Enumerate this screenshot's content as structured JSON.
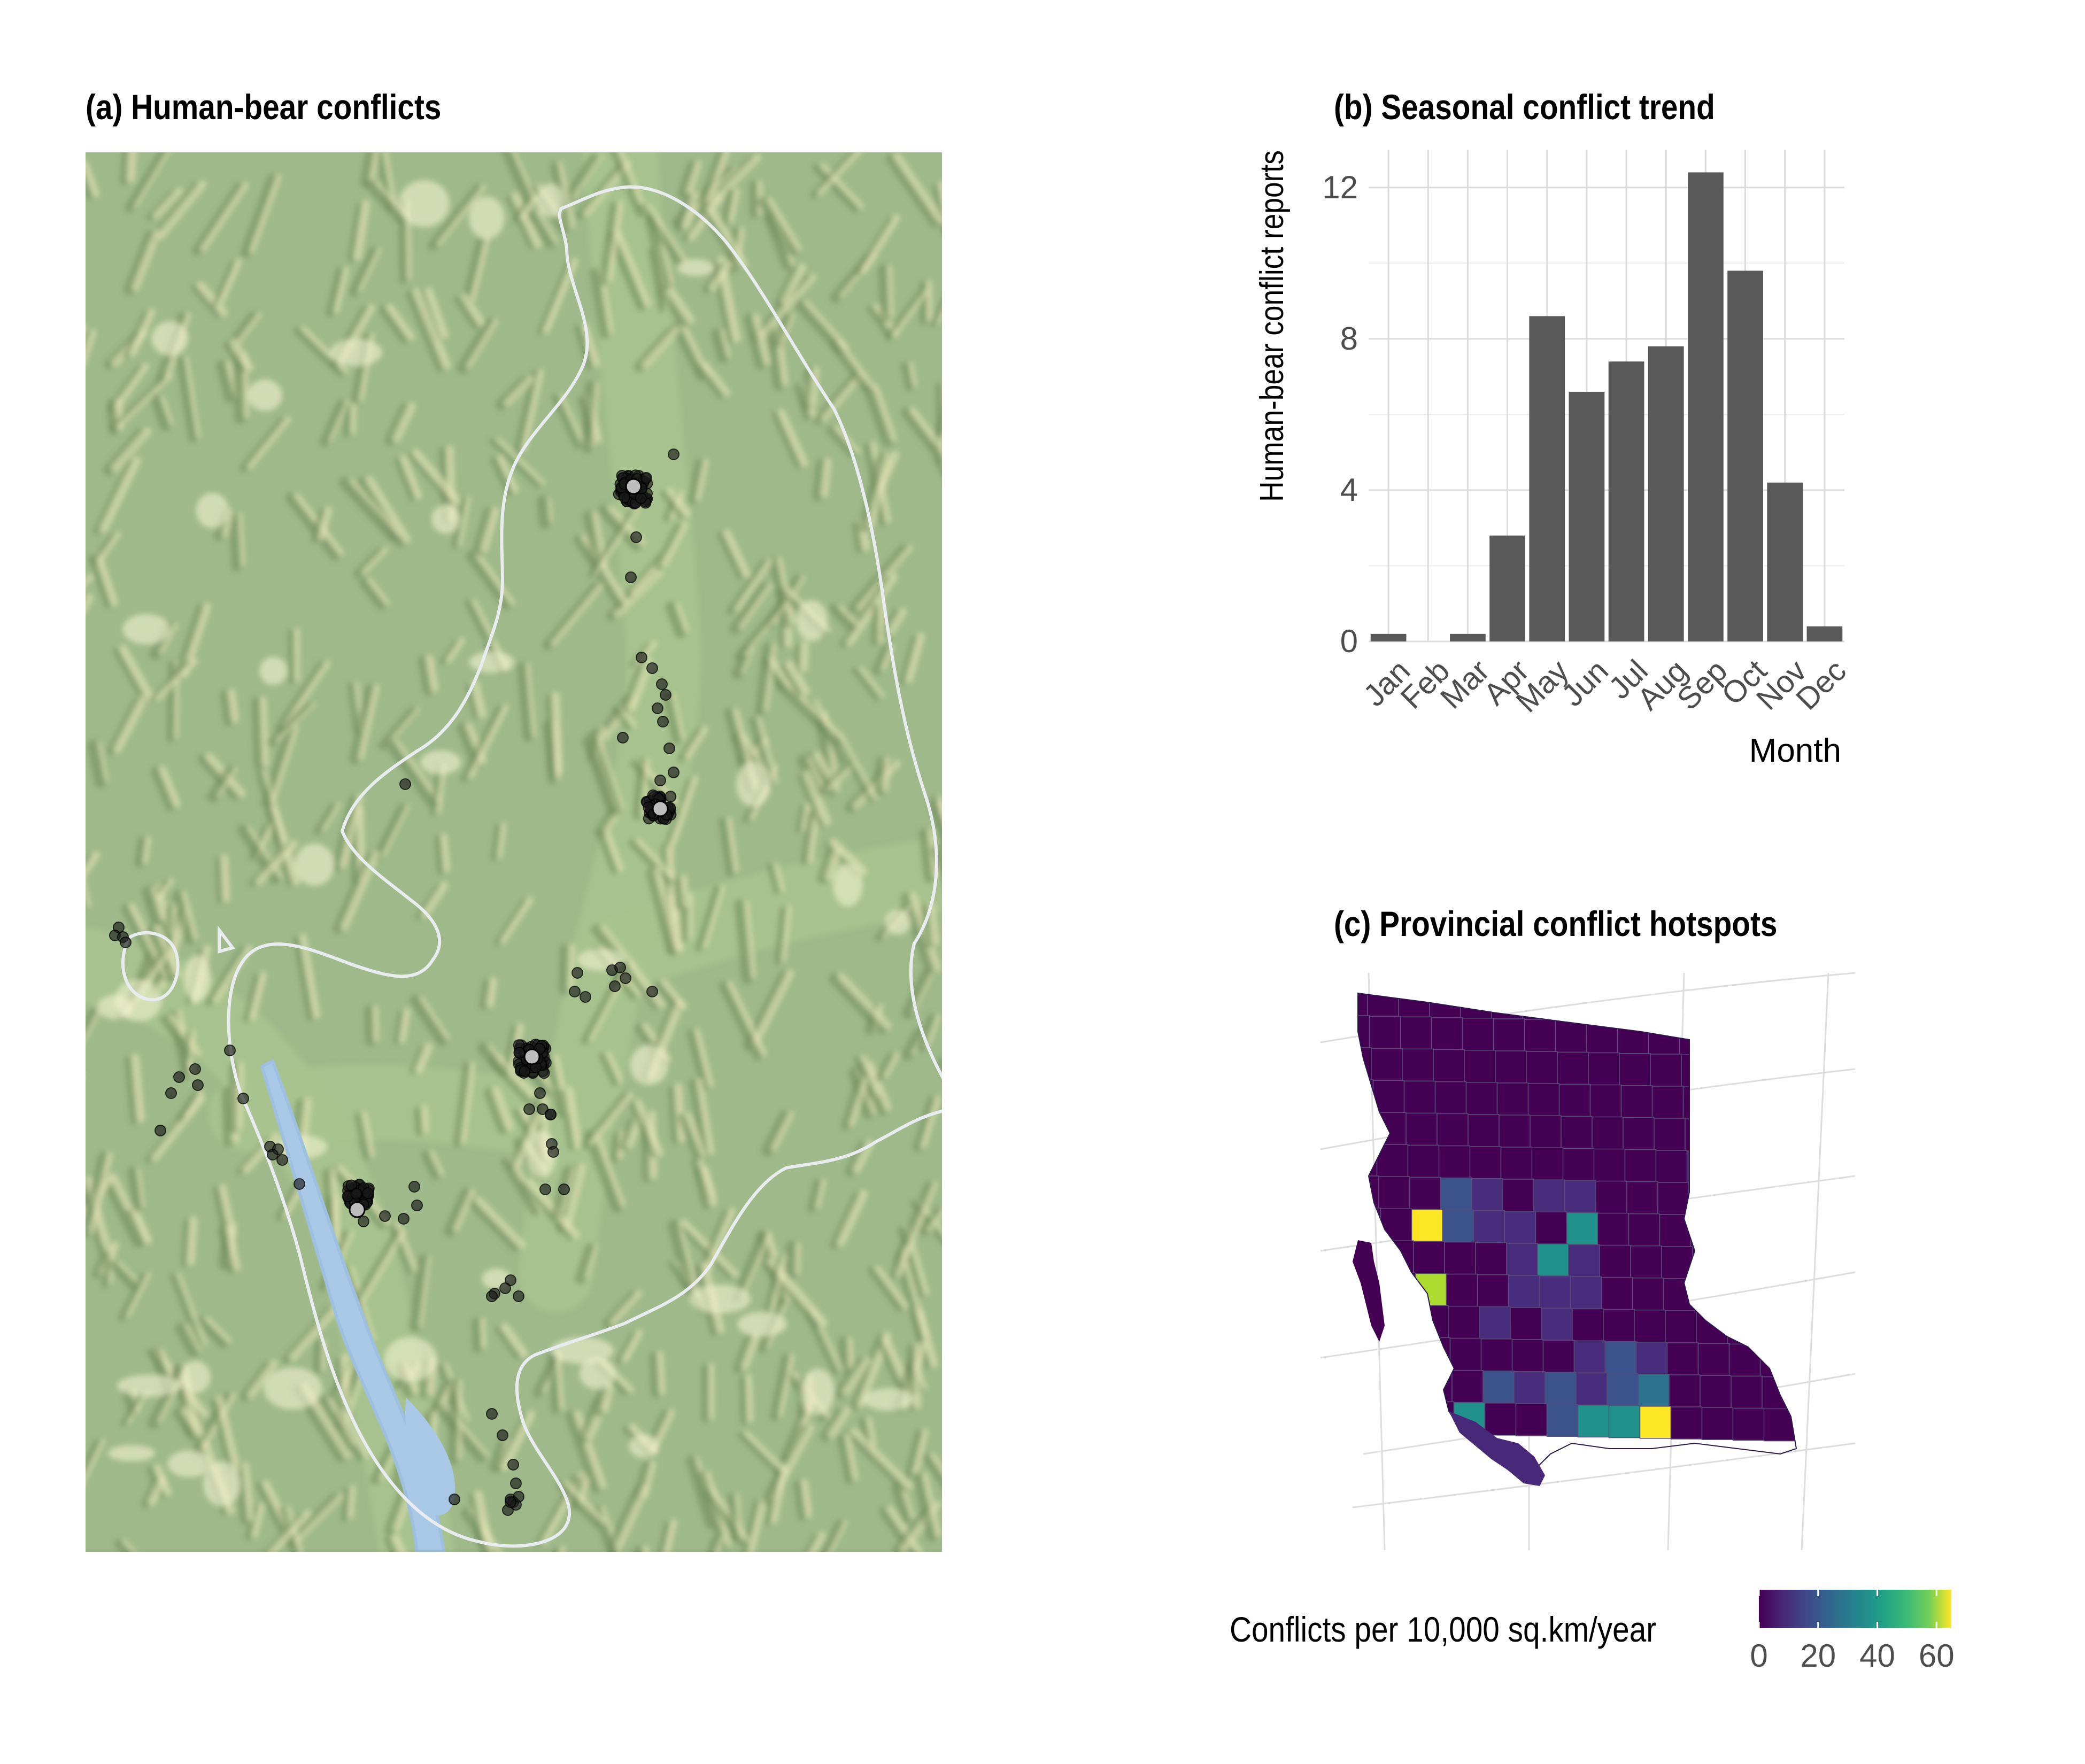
{
  "panels": {
    "a": {
      "title": "(a) Human-bear conflicts"
    },
    "b": {
      "title": "(b) Seasonal conflict trend"
    },
    "c": {
      "title": "(c) Provincial conflict hotspots"
    }
  },
  "chart_data": [
    {
      "type": "bar",
      "title": "(b) Seasonal conflict trend",
      "xlabel": "Month",
      "ylabel": "Human-bear conflict reports",
      "categories": [
        "Jan",
        "Feb",
        "Mar",
        "Apr",
        "May",
        "Jun",
        "Jul",
        "Aug",
        "Sep",
        "Oct",
        "Nov",
        "Dec"
      ],
      "values": [
        0.2,
        0,
        0.2,
        2.8,
        8.6,
        6.6,
        7.4,
        7.8,
        12.4,
        9.8,
        4.2,
        0.4
      ],
      "ylim": [
        0,
        13
      ],
      "yticks": [
        0,
        4,
        8,
        12
      ],
      "bar_color": "#595959",
      "grid": true
    },
    {
      "type": "heatmap",
      "title": "(c) Provincial conflict hotspots",
      "legend": {
        "title": "Conflicts per 10,000 sq.km/year",
        "ticks": [
          0,
          20,
          40,
          60
        ],
        "range": [
          0,
          65
        ],
        "colormap": "viridis"
      }
    }
  ],
  "map": {
    "colors": {
      "terrain_base": "#9fb98a",
      "terrain_valley": "#a9c48f",
      "ridge_shadow": "#6f8a5c",
      "ridge_light": "#e8e6b8",
      "water": "#a9c8e6",
      "boundary": "#e9ecee",
      "point": "#1a1a1a",
      "cluster_center": "#bdbdbd"
    }
  }
}
